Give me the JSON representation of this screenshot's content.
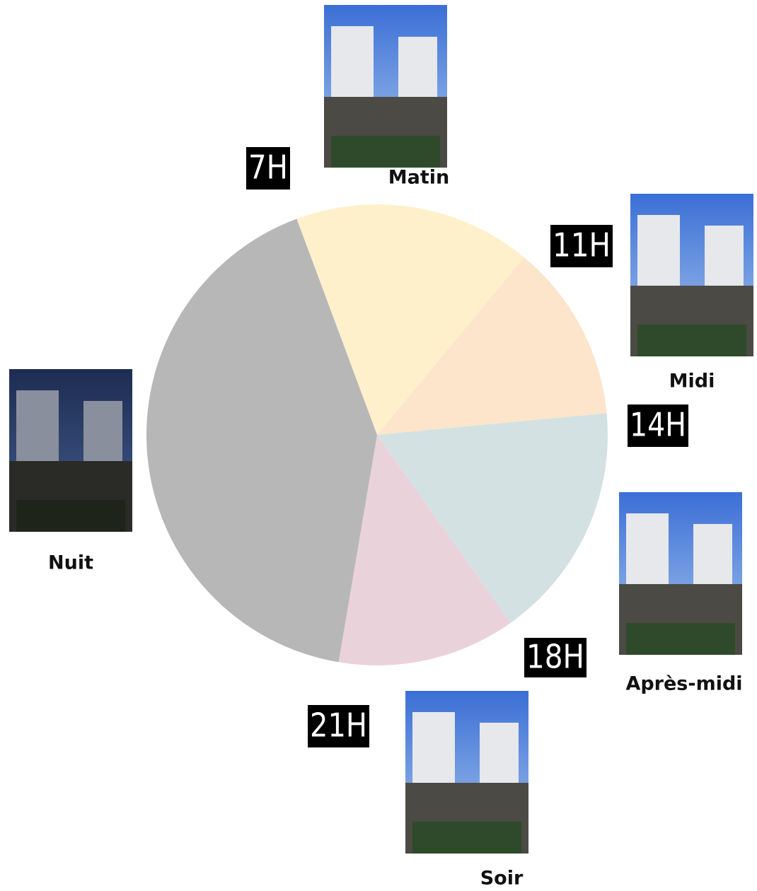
{
  "chart_data": {
    "type": "pie",
    "categories": [
      "Matin",
      "Midi",
      "Après-midi",
      "Soir",
      "Nuit"
    ],
    "values": [
      4,
      3,
      4,
      3,
      10
    ],
    "colors": [
      "#fff0cc",
      "#fce5cb",
      "#d3e1e3",
      "#ead2db",
      "#b7b7b7"
    ],
    "hour_labels": [
      "7H",
      "11H",
      "14H",
      "18H",
      "21H"
    ]
  }
}
